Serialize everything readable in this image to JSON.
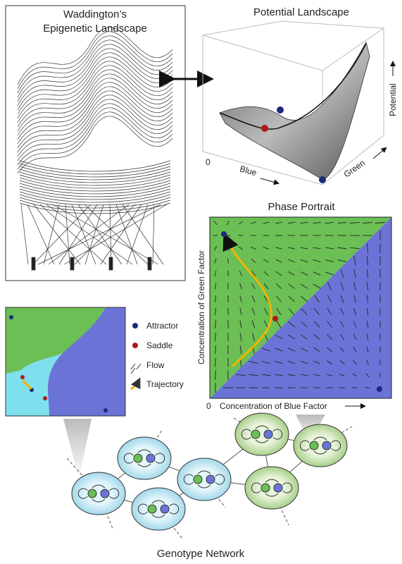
{
  "waddington": {
    "title": [
      "Waddington’s",
      "Epigenetic Landscape"
    ]
  },
  "potential_landscape": {
    "title": "Potential Landscape",
    "axes": {
      "potential": "Potential",
      "blue": "Blue",
      "green": "Green",
      "origin": "0"
    }
  },
  "phase_portrait": {
    "title": "Phase Portrait",
    "y_label": "Concentration of Green Factor",
    "x_label": "Concentration of Blue Factor",
    "origin": "0"
  },
  "legend": {
    "items": [
      "Attractor",
      "Saddle",
      "Flow",
      "Trajectory"
    ]
  },
  "genotype_network": {
    "title": "Genotype Network"
  }
}
